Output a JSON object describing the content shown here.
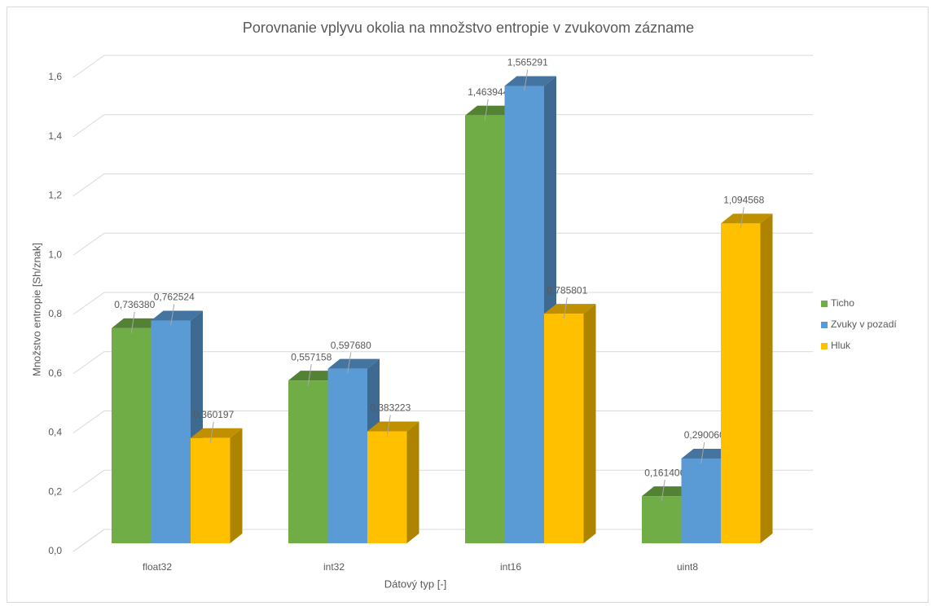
{
  "chart_data": {
    "type": "bar3d",
    "title": "Porovnanie vplyvu okolia na množstvo entropie v zvukovom zázname",
    "x_label": "Dátový typ [-]",
    "y_label": "Množstvo entropie [Sh/znak]",
    "categories": [
      "float32",
      "int32",
      "int16",
      "uint8"
    ],
    "series": [
      {
        "name": "Ticho",
        "color": "#70ad47",
        "values": [
          0.73638,
          0.557158,
          1.463944,
          0.161406
        ],
        "value_labels": [
          "0,736380",
          "0,557158",
          "1,463944",
          "0,161406"
        ]
      },
      {
        "name": "Zvuky v pozadí",
        "color": "#5b9bd5",
        "values": [
          0.762524,
          0.59768,
          1.565291,
          0.29006
        ],
        "value_labels": [
          "0,762524",
          "0,597680",
          "1,565291",
          "0,290060"
        ]
      },
      {
        "name": "Hluk",
        "color": "#ffc000",
        "values": [
          0.360197,
          0.383223,
          0.785801,
          1.094568
        ],
        "value_labels": [
          "0,360197",
          "0,383223",
          "0,785801",
          "1,094568"
        ]
      }
    ],
    "ylim": [
      0,
      1.6
    ],
    "yticks": [
      {
        "value": 0,
        "label": "0,0"
      },
      {
        "value": 0.2,
        "label": "0,2"
      },
      {
        "value": 0.4,
        "label": "0,4"
      },
      {
        "value": 0.6,
        "label": "0,6"
      },
      {
        "value": 0.8,
        "label": "0,8"
      },
      {
        "value": 1.0,
        "label": "1,0"
      },
      {
        "value": 1.2,
        "label": "1,2"
      },
      {
        "value": 1.4,
        "label": "1,4"
      },
      {
        "value": 1.6,
        "label": "1,6"
      }
    ],
    "grid": true,
    "legend": "right"
  }
}
